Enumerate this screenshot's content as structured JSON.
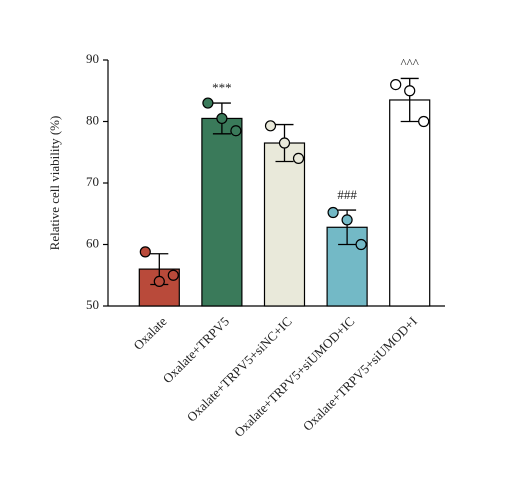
{
  "chart_data": {
    "type": "bar",
    "y_label": "Relative cell viability (%)",
    "categories": [
      "Oxalate",
      "Oxalate+TRPV5",
      "Oxalate+TRPV5+siNC+IC",
      "Oxalate+TRPV5+siUMOD+IC",
      "Oxalate+TRPV5+siUMOD+I"
    ],
    "values": [
      56,
      80.5,
      76.5,
      62.8,
      83.5
    ],
    "errors": [
      2.5,
      2.5,
      3,
      2.8,
      3.5
    ],
    "points": [
      [
        58.8,
        54,
        55
      ],
      [
        83,
        80.5,
        78.5
      ],
      [
        79.3,
        76.5,
        74
      ],
      [
        65.2,
        64,
        60
      ],
      [
        86,
        85,
        80
      ]
    ],
    "annotations": [
      null,
      "***",
      null,
      "###",
      "^^^"
    ],
    "colors": [
      "#b94a3a",
      "#3a7a5a",
      "#e9e9da",
      "#73b9c6",
      "#ffffff"
    ],
    "ylim": [
      50,
      90
    ],
    "yticks": [
      50,
      60,
      70,
      80,
      90
    ]
  }
}
